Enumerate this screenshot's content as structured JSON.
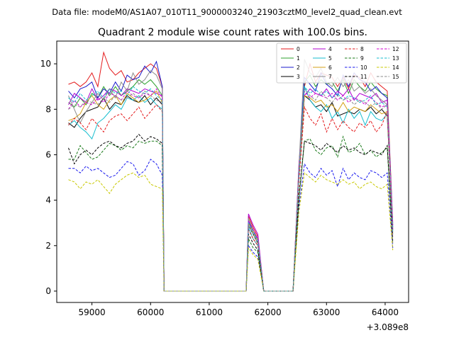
{
  "chart_data": {
    "type": "line",
    "suptitle": "Data file: modeM0/AS1A07_010T11_9000003240_21903cztM0_level2_quad_clean.evt",
    "title": "Quadrant 2 module wise count rates with 100.0s bins.",
    "xlabel": "",
    "ylabel": "",
    "x_offset_label": "+3.089e8",
    "xlim": [
      58400,
      64400
    ],
    "ylim": [
      -0.5,
      11.0
    ],
    "x_ticks": [
      59000,
      60000,
      61000,
      62000,
      63000,
      64000
    ],
    "y_ticks": [
      0,
      2,
      4,
      6,
      8,
      10
    ],
    "x_ticklabels": [
      "59000",
      "60000",
      "61000",
      "62000",
      "63000",
      "64000"
    ],
    "y_ticklabels": [
      "0",
      "2",
      "4",
      "6",
      "8",
      "10"
    ],
    "legend_position": "top-right",
    "legend_columns": 4,
    "segments": {
      "a_start": 58600,
      "a_end": 60130,
      "gap1_start": 60230,
      "gap1_end": 61630,
      "b_peak": 61670,
      "b_end": 61830,
      "gap2_start": 61930,
      "gap2_end": 62430,
      "c_start": 62530,
      "c_end": 64130,
      "step": 100
    },
    "series": [
      {
        "name": "0",
        "color": "#e41a1c",
        "dash": "solid",
        "a": [
          9.1,
          9.2,
          9.0,
          9.2,
          9.6,
          9.0,
          10.5,
          9.8,
          9.5,
          9.7,
          9.2,
          9.3,
          9.6,
          9.8,
          10.0,
          9.8,
          9.0
        ],
        "b": [
          3.3,
          2.8,
          2.4
        ],
        "c": [
          5.5,
          9.0,
          10.0,
          9.2,
          9.6,
          9.5,
          9.4,
          9.0,
          9.4,
          8.9,
          9.5,
          9.4,
          9.0,
          9.6,
          9.2,
          9.0,
          8.8,
          3.0
        ]
      },
      {
        "name": "1",
        "color": "#2ca02c",
        "dash": "solid",
        "a": [
          8.3,
          8.1,
          8.5,
          8.2,
          8.7,
          8.5,
          9.0,
          8.6,
          9.0,
          8.6,
          8.8,
          9.0,
          9.3,
          9.1,
          9.3,
          9.0,
          8.6
        ],
        "b": [
          3.0,
          2.6,
          2.2
        ],
        "c": [
          5.2,
          9.2,
          9.5,
          9.0,
          9.3,
          9.1,
          9.2,
          8.8,
          9.3,
          8.7,
          9.3,
          9.0,
          8.8,
          9.2,
          8.9,
          8.7,
          8.6,
          2.9
        ]
      },
      {
        "name": "2",
        "color": "#1a1acc",
        "dash": "solid",
        "a": [
          8.8,
          8.5,
          8.9,
          9.0,
          9.2,
          8.5,
          8.9,
          8.7,
          9.2,
          8.8,
          9.5,
          9.3,
          9.4,
          9.9,
          9.6,
          10.1,
          9.0
        ],
        "b": [
          3.1,
          2.6,
          2.3
        ],
        "c": [
          5.4,
          9.4,
          9.1,
          8.8,
          9.6,
          9.1,
          8.9,
          8.6,
          9.5,
          9.0,
          9.6,
          9.3,
          9.2,
          8.8,
          9.0,
          8.7,
          8.5,
          2.8
        ]
      },
      {
        "name": "3",
        "color": "#000000",
        "dash": "solid",
        "a": [
          7.4,
          7.2,
          7.6,
          7.9,
          8.0,
          8.1,
          8.5,
          8.0,
          8.3,
          8.2,
          8.6,
          8.4,
          8.3,
          8.6,
          8.2,
          8.5,
          8.2
        ],
        "b": [
          2.9,
          2.5,
          2.1
        ],
        "c": [
          5.0,
          8.6,
          8.4,
          8.1,
          8.2,
          7.9,
          8.3,
          7.7,
          7.8,
          7.9,
          7.8,
          8.0,
          7.9,
          8.1,
          7.8,
          8.0,
          7.7,
          2.7
        ]
      },
      {
        "name": "4",
        "color": "#b000d0",
        "dash": "solid",
        "a": [
          8.2,
          8.7,
          8.5,
          8.3,
          8.9,
          8.4,
          8.6,
          8.9,
          8.8,
          8.6,
          8.9,
          8.8,
          8.7,
          8.9,
          8.8,
          8.7,
          8.6
        ],
        "b": [
          3.4,
          2.9,
          2.5
        ],
        "c": [
          5.6,
          8.6,
          8.9,
          8.7,
          8.6,
          8.9,
          8.5,
          8.8,
          8.6,
          8.9,
          8.4,
          8.7,
          8.6,
          8.5,
          8.7,
          8.3,
          8.4,
          2.9
        ]
      },
      {
        "name": "5",
        "color": "#17becf",
        "dash": "solid",
        "a": [
          7.3,
          7.5,
          7.2,
          7.0,
          6.7,
          7.4,
          7.6,
          7.9,
          8.2,
          8.0,
          8.5,
          8.4,
          8.6,
          8.3,
          8.5,
          8.2,
          8.0
        ],
        "b": [
          2.8,
          2.3,
          2.0
        ],
        "c": [
          5.0,
          9.0,
          8.4,
          8.1,
          7.9,
          8.2,
          7.6,
          7.9,
          7.4,
          8.0,
          7.6,
          7.9,
          7.3,
          7.9,
          7.6,
          7.5,
          7.8,
          2.5
        ]
      },
      {
        "name": "6",
        "color": "#d4a017",
        "dash": "solid",
        "a": [
          7.5,
          7.6,
          7.8,
          8.3,
          8.6,
          8.2,
          8.0,
          8.4,
          8.6,
          8.2,
          8.7,
          8.5,
          8.3,
          8.4,
          8.6,
          8.8,
          8.3
        ],
        "b": [
          3.0,
          2.6,
          2.2
        ],
        "c": [
          5.3,
          8.6,
          8.5,
          8.3,
          8.4,
          8.1,
          8.2,
          7.9,
          8.3,
          7.9,
          8.1,
          8.0,
          7.9,
          8.2,
          8.0,
          7.8,
          7.9,
          2.6
        ]
      },
      {
        "name": "7",
        "color": "#8c8c8c",
        "dash": "solid",
        "a": [
          8.6,
          8.0,
          7.4,
          7.9,
          8.3,
          8.7,
          8.4,
          8.9,
          8.5,
          9.2,
          8.8,
          9.6,
          9.1,
          9.3,
          9.7,
          9.5,
          8.9
        ],
        "b": [
          3.2,
          2.7,
          2.3
        ],
        "c": [
          5.5,
          10.2,
          9.6,
          9.4,
          9.8,
          9.2,
          9.0,
          9.4,
          9.0,
          9.3,
          8.8,
          9.0,
          8.7,
          8.9,
          8.6,
          8.4,
          8.2,
          2.8
        ]
      },
      {
        "name": "8",
        "color": "#e41a1c",
        "dash": "dashed",
        "a": [
          7.3,
          7.6,
          7.4,
          7.1,
          7.6,
          7.3,
          7.0,
          7.5,
          7.7,
          7.8,
          7.5,
          7.8,
          8.1,
          7.6,
          7.9,
          8.2,
          7.9
        ],
        "b": [
          2.7,
          2.3,
          2.0
        ],
        "c": [
          4.8,
          8.1,
          7.6,
          7.3,
          7.8,
          7.0,
          7.6,
          7.1,
          7.5,
          7.2,
          7.0,
          7.4,
          7.2,
          7.5,
          7.0,
          7.3,
          7.9,
          2.4
        ]
      },
      {
        "name": "9",
        "color": "#1a7a1a",
        "dash": "dashed",
        "a": [
          5.8,
          5.8,
          6.4,
          6.1,
          5.8,
          5.9,
          6.2,
          6.5,
          6.4,
          6.2,
          6.4,
          6.3,
          6.6,
          6.5,
          6.6,
          6.6,
          6.4
        ],
        "b": [
          2.3,
          1.9,
          1.7
        ],
        "c": [
          4.0,
          6.6,
          6.7,
          6.2,
          6.0,
          6.3,
          6.4,
          5.9,
          6.8,
          6.1,
          6.2,
          6.5,
          6.0,
          6.2,
          5.9,
          6.1,
          6.3,
          2.1
        ]
      },
      {
        "name": "10",
        "color": "#1a1aee",
        "dash": "dashed",
        "a": [
          5.4,
          5.4,
          5.2,
          5.5,
          5.3,
          5.4,
          5.2,
          5.0,
          5.1,
          5.4,
          5.7,
          5.6,
          5.1,
          5.3,
          5.8,
          5.6,
          5.1
        ],
        "b": [
          2.0,
          1.7,
          1.5
        ],
        "c": [
          3.7,
          5.6,
          5.2,
          5.0,
          5.4,
          5.1,
          5.3,
          4.6,
          5.4,
          4.9,
          5.2,
          5.0,
          4.9,
          5.3,
          5.2,
          5.0,
          5.2,
          1.9
        ]
      },
      {
        "name": "11",
        "color": "#000000",
        "dash": "dashed",
        "a": [
          6.3,
          5.6,
          6.0,
          6.2,
          6.0,
          6.3,
          6.5,
          6.6,
          6.4,
          6.3,
          6.5,
          6.6,
          6.9,
          6.6,
          6.8,
          6.7,
          6.5
        ],
        "b": [
          2.5,
          2.1,
          1.8
        ],
        "c": [
          4.2,
          6.6,
          6.5,
          6.4,
          6.2,
          6.5,
          6.3,
          6.1,
          6.4,
          6.2,
          6.3,
          6.1,
          6.0,
          6.2,
          6.1,
          6.0,
          6.4,
          2.2
        ]
      },
      {
        "name": "12",
        "color": "#d000d0",
        "dash": "dashed",
        "a": [
          8.0,
          8.4,
          8.1,
          8.3,
          8.2,
          8.5,
          8.3,
          8.7,
          8.6,
          8.4,
          8.8,
          8.6,
          8.5,
          8.7,
          8.6,
          8.9,
          8.5
        ],
        "b": [
          3.1,
          2.7,
          2.3
        ],
        "c": [
          5.4,
          8.8,
          8.5,
          8.7,
          8.6,
          8.5,
          8.7,
          8.4,
          8.6,
          8.3,
          8.5,
          8.4,
          8.2,
          8.5,
          8.3,
          8.1,
          8.2,
          2.7
        ]
      },
      {
        "name": "13",
        "color": "#17becf",
        "dash": "dashed",
        "a": [
          8.5,
          8.3,
          8.7,
          8.4,
          8.6,
          8.8,
          8.5,
          8.9,
          8.7,
          8.8,
          8.6,
          9.0,
          8.8,
          8.7,
          8.9,
          8.6,
          8.4
        ],
        "b": [
          3.0,
          2.6,
          2.2
        ],
        "c": [
          5.2,
          9.0,
          8.7,
          8.9,
          8.6,
          8.8,
          8.5,
          8.7,
          8.4,
          8.6,
          8.5,
          8.3,
          8.4,
          8.6,
          8.2,
          8.3,
          8.1,
          2.6
        ]
      },
      {
        "name": "14",
        "color": "#c8c800",
        "dash": "dashed",
        "a": [
          4.9,
          4.8,
          4.5,
          4.8,
          4.7,
          4.9,
          4.6,
          4.3,
          4.7,
          4.9,
          5.1,
          5.2,
          5.0,
          5.1,
          4.7,
          4.6,
          4.5
        ],
        "b": [
          1.9,
          1.6,
          1.4
        ],
        "c": [
          3.5,
          5.2,
          5.0,
          4.8,
          5.1,
          4.9,
          4.8,
          4.7,
          4.9,
          4.7,
          4.8,
          4.5,
          4.7,
          4.8,
          4.6,
          4.5,
          4.7,
          1.8
        ]
      },
      {
        "name": "15",
        "color": "#8c8c8c",
        "dash": "dashed",
        "a": [
          8.0,
          8.2,
          8.1,
          8.4,
          8.3,
          8.2,
          8.5,
          8.3,
          8.6,
          8.4,
          8.5,
          8.7,
          8.5,
          8.8,
          8.6,
          8.4,
          8.3
        ],
        "b": [
          2.9,
          2.5,
          2.1
        ],
        "c": [
          5.1,
          8.9,
          8.6,
          8.4,
          8.8,
          8.5,
          8.3,
          8.6,
          8.4,
          8.5,
          8.2,
          8.4,
          8.3,
          8.1,
          8.3,
          8.0,
          8.2,
          2.1
        ]
      }
    ]
  }
}
